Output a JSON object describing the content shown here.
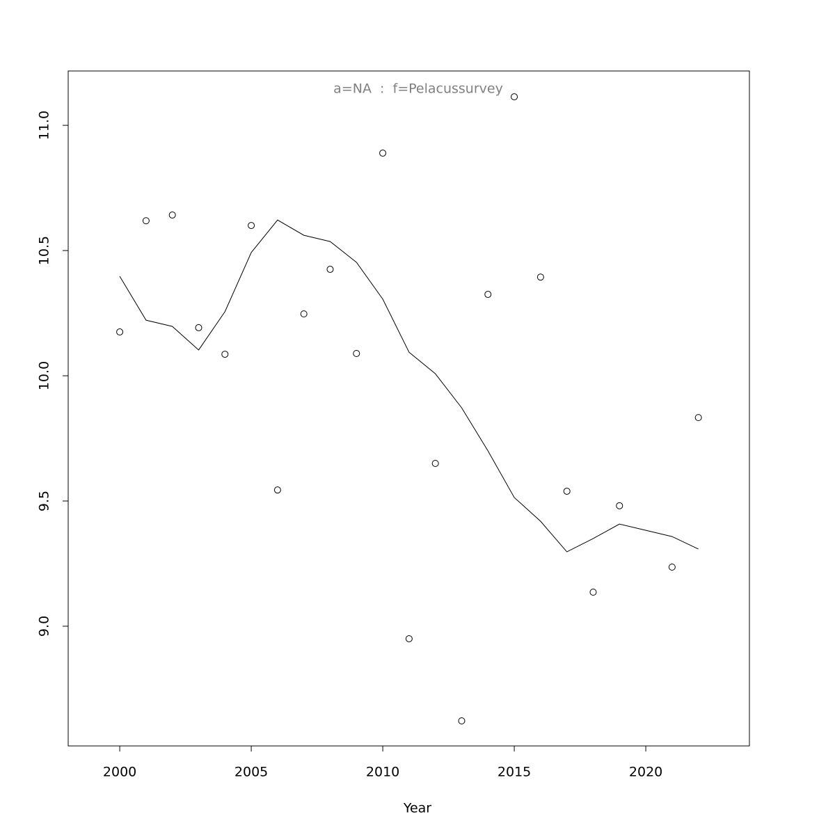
{
  "chart_data": {
    "type": "scatter",
    "title": "a=NA  :  f=Pelacussurvey",
    "x_label": "Year",
    "x": [
      2000,
      2001,
      2002,
      2003,
      2004,
      2005,
      2006,
      2007,
      2008,
      2009,
      2010,
      2011,
      2012,
      2013,
      2014,
      2015,
      2016,
      2017,
      2018,
      2019,
      2020,
      2021,
      2022
    ],
    "series": [
      {
        "mode": "points",
        "color": "#000000",
        "values": [
          10.175,
          10.619,
          10.642,
          10.192,
          10.086,
          10.6,
          9.544,
          10.247,
          10.425,
          10.089,
          10.889,
          8.95,
          9.65,
          8.622,
          10.325,
          11.114,
          10.394,
          9.539,
          9.136,
          9.481,
          null,
          9.236,
          9.833
        ]
      },
      {
        "mode": "line",
        "color": "#000000",
        "values": [
          10.397,
          10.222,
          10.197,
          10.103,
          10.256,
          10.492,
          10.622,
          10.561,
          10.536,
          10.453,
          10.306,
          10.094,
          10.008,
          9.872,
          9.7,
          9.514,
          9.419,
          9.297,
          9.35,
          9.408,
          9.383,
          9.358,
          9.308
        ]
      }
    ],
    "xlim": [
      1998.04,
      2023.94
    ],
    "ylim": [
      8.522,
      11.217
    ],
    "xticks": [
      2000,
      2005,
      2010,
      2015,
      2020
    ],
    "yticks": [
      {
        "value": 9,
        "label": "9.0"
      },
      {
        "value": 9.5,
        "label": "9.5"
      },
      {
        "value": 10,
        "label": "10.0"
      },
      {
        "value": 10.5,
        "label": "10.5"
      },
      {
        "value": 11,
        "label": "11.0"
      }
    ],
    "title_color": "#808080"
  }
}
